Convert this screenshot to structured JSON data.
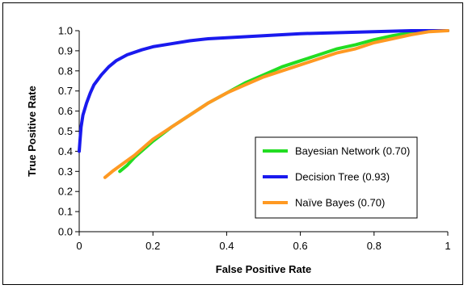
{
  "chart_data": {
    "type": "line",
    "xlabel": "False Positive Rate",
    "ylabel": "True Positive Rate",
    "xlim": [
      0,
      1
    ],
    "ylim": [
      0,
      1
    ],
    "x_ticks": [
      "0",
      "0.2",
      "0.4",
      "0.6",
      "0.8",
      "1"
    ],
    "y_ticks": [
      "0.0",
      "0.1",
      "0.2",
      "0.3",
      "0.4",
      "0.5",
      "0.6",
      "0.7",
      "0.8",
      "0.9",
      "1.0"
    ],
    "grid": false,
    "legend_position": "right-middle",
    "series": [
      {
        "name": "Bayesian Network (0.70)",
        "color": "#22dd22",
        "points": [
          [
            0.11,
            0.3
          ],
          [
            0.13,
            0.33
          ],
          [
            0.15,
            0.37
          ],
          [
            0.2,
            0.45
          ],
          [
            0.25,
            0.52
          ],
          [
            0.3,
            0.58
          ],
          [
            0.35,
            0.64
          ],
          [
            0.4,
            0.69
          ],
          [
            0.45,
            0.74
          ],
          [
            0.5,
            0.78
          ],
          [
            0.55,
            0.82
          ],
          [
            0.6,
            0.85
          ],
          [
            0.65,
            0.88
          ],
          [
            0.7,
            0.91
          ],
          [
            0.75,
            0.93
          ],
          [
            0.8,
            0.955
          ],
          [
            0.85,
            0.975
          ],
          [
            0.9,
            0.99
          ],
          [
            0.95,
            1.0
          ],
          [
            1.0,
            1.0
          ]
        ]
      },
      {
        "name": "Decision Tree (0.93)",
        "color": "#1a1aee",
        "points": [
          [
            0.0,
            0.4
          ],
          [
            0.002,
            0.45
          ],
          [
            0.005,
            0.52
          ],
          [
            0.01,
            0.58
          ],
          [
            0.02,
            0.64
          ],
          [
            0.03,
            0.69
          ],
          [
            0.04,
            0.73
          ],
          [
            0.06,
            0.78
          ],
          [
            0.08,
            0.82
          ],
          [
            0.1,
            0.85
          ],
          [
            0.13,
            0.88
          ],
          [
            0.17,
            0.905
          ],
          [
            0.2,
            0.92
          ],
          [
            0.25,
            0.935
          ],
          [
            0.3,
            0.95
          ],
          [
            0.35,
            0.96
          ],
          [
            0.4,
            0.965
          ],
          [
            0.5,
            0.975
          ],
          [
            0.6,
            0.985
          ],
          [
            0.7,
            0.99
          ],
          [
            0.8,
            0.995
          ],
          [
            0.9,
            1.0
          ],
          [
            1.0,
            1.0
          ]
        ]
      },
      {
        "name": "Naïve Bayes (0.70)",
        "color": "#ff9922",
        "points": [
          [
            0.07,
            0.27
          ],
          [
            0.09,
            0.3
          ],
          [
            0.12,
            0.34
          ],
          [
            0.15,
            0.38
          ],
          [
            0.2,
            0.46
          ],
          [
            0.25,
            0.52
          ],
          [
            0.3,
            0.58
          ],
          [
            0.35,
            0.64
          ],
          [
            0.4,
            0.69
          ],
          [
            0.45,
            0.73
          ],
          [
            0.5,
            0.77
          ],
          [
            0.55,
            0.8
          ],
          [
            0.6,
            0.83
          ],
          [
            0.65,
            0.86
          ],
          [
            0.7,
            0.89
          ],
          [
            0.75,
            0.91
          ],
          [
            0.8,
            0.94
          ],
          [
            0.85,
            0.96
          ],
          [
            0.9,
            0.98
          ],
          [
            0.95,
            0.995
          ],
          [
            1.0,
            1.0
          ]
        ]
      }
    ]
  }
}
